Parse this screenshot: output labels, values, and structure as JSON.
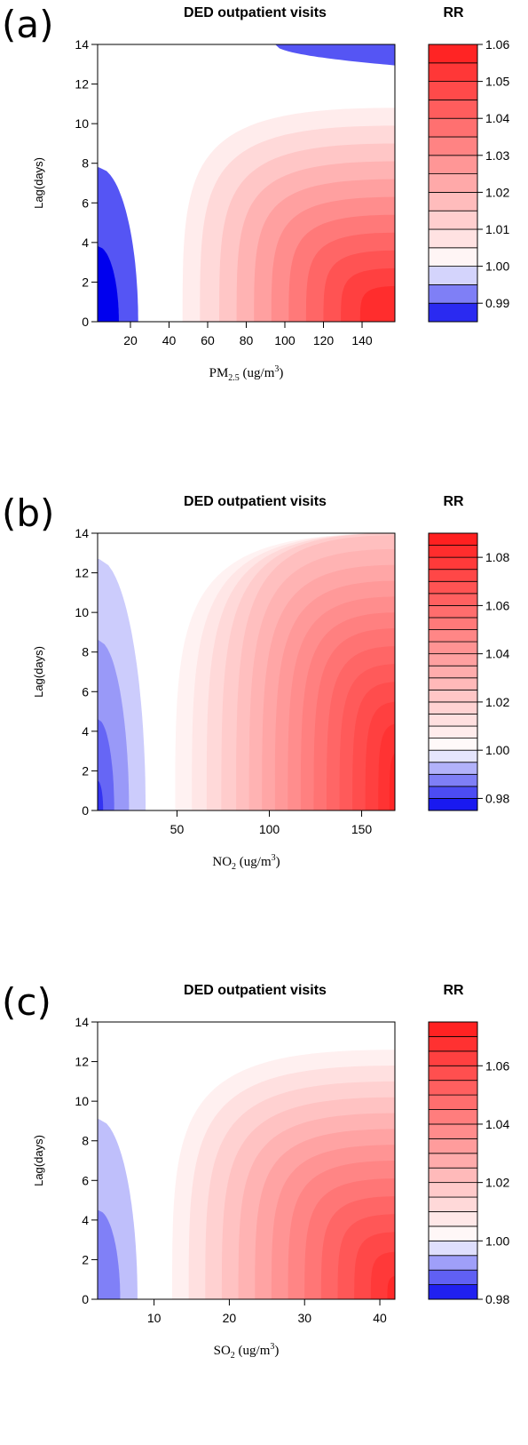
{
  "chart_data": [
    {
      "type": "heatmap",
      "panel_label": "(a)",
      "title": "DED outpatient visits",
      "legend_title": "RR",
      "ylabel": "Lag(days)",
      "xlabel": {
        "main": "PM",
        "sub": "2.5",
        "unit": " (ug/m",
        "sup": "3",
        "close": ")"
      },
      "xlim": [
        3,
        157
      ],
      "ylim": [
        0,
        14
      ],
      "x_ticks": [
        20,
        40,
        60,
        80,
        100,
        120,
        140
      ],
      "y_ticks": [
        0,
        2,
        4,
        6,
        8,
        10,
        12,
        14
      ],
      "legend_range": [
        0.985,
        1.06
      ],
      "legend_step": 0.005,
      "legend_ticks": [
        "0.99",
        "1.00",
        "1.01",
        "1.02",
        "1.03",
        "1.04",
        "1.05",
        "1.06"
      ],
      "legend_tick_values": [
        0.99,
        1.0,
        1.01,
        1.02,
        1.03,
        1.04,
        1.05,
        1.06
      ],
      "reference_rr": 1.0,
      "low_exposure_contours": [
        {
          "rr": 0.99,
          "x_at_lag0": 24,
          "max_lag": 7.8
        },
        {
          "rr": 0.985,
          "x_at_lag0": 14,
          "max_lag": 3.8
        }
      ],
      "high_exposure_contours": [
        {
          "rr": 1.005,
          "x_at_lag0": 47,
          "max_lag": 10.8
        },
        {
          "rr": 1.01,
          "x_at_lag0": 56,
          "max_lag": 9.9
        },
        {
          "rr": 1.015,
          "x_at_lag0": 66,
          "max_lag": 9.0
        },
        {
          "rr": 1.02,
          "x_at_lag0": 75,
          "max_lag": 8.1
        },
        {
          "rr": 1.025,
          "x_at_lag0": 84,
          "max_lag": 7.2
        },
        {
          "rr": 1.03,
          "x_at_lag0": 93,
          "max_lag": 6.3
        },
        {
          "rr": 1.035,
          "x_at_lag0": 102,
          "max_lag": 5.4
        },
        {
          "rr": 1.04,
          "x_at_lag0": 111,
          "max_lag": 4.5
        },
        {
          "rr": 1.045,
          "x_at_lag0": 120,
          "max_lag": 3.6
        },
        {
          "rr": 1.05,
          "x_at_lag0": 129,
          "max_lag": 2.7
        },
        {
          "rr": 1.055,
          "x_at_lag0": 139,
          "max_lag": 1.8
        }
      ],
      "top_right_band": {
        "rr": 0.99,
        "x_start": 95,
        "lag_start_at_xmax": 12.9
      }
    },
    {
      "type": "heatmap",
      "panel_label": "(b)",
      "title": "DED outpatient visits",
      "legend_title": "RR",
      "ylabel": "Lag(days)",
      "xlabel": {
        "main": "NO",
        "sub": "2",
        "unit": " (ug/m",
        "sup": "3",
        "close": ")"
      },
      "xlim": [
        7,
        168
      ],
      "ylim": [
        0,
        14
      ],
      "x_ticks": [
        50,
        100,
        150
      ],
      "y_ticks": [
        0,
        2,
        4,
        6,
        8,
        10,
        12,
        14
      ],
      "legend_range": [
        0.975,
        1.09
      ],
      "legend_step": 0.005,
      "legend_ticks": [
        "0.98",
        "1.00",
        "1.02",
        "1.04",
        "1.06",
        "1.08"
      ],
      "legend_tick_values": [
        0.98,
        1.0,
        1.02,
        1.04,
        1.06,
        1.08
      ],
      "reference_rr": 1.0,
      "low_exposure_contours": [
        {
          "rr": 0.995,
          "x_at_lag0": 33,
          "max_lag": 12.7
        },
        {
          "rr": 0.99,
          "x_at_lag0": 24,
          "max_lag": 8.6
        },
        {
          "rr": 0.985,
          "x_at_lag0": 16,
          "max_lag": 4.6
        },
        {
          "rr": 0.98,
          "x_at_lag0": 10,
          "max_lag": 1.5
        }
      ],
      "high_exposure_contours": [
        {
          "rr": 1.005,
          "x_at_lag0": 49,
          "max_lag": 14.0
        },
        {
          "rr": 1.01,
          "x_at_lag0": 58,
          "max_lag": 14.0
        },
        {
          "rr": 1.015,
          "x_at_lag0": 66,
          "max_lag": 14.0
        },
        {
          "rr": 1.02,
          "x_at_lag0": 74,
          "max_lag": 14.0
        },
        {
          "rr": 1.025,
          "x_at_lag0": 82,
          "max_lag": 13.9
        },
        {
          "rr": 1.03,
          "x_at_lag0": 89,
          "max_lag": 13.2
        },
        {
          "rr": 1.035,
          "x_at_lag0": 96,
          "max_lag": 12.4
        },
        {
          "rr": 1.04,
          "x_at_lag0": 103,
          "max_lag": 11.6
        },
        {
          "rr": 1.045,
          "x_at_lag0": 110,
          "max_lag": 10.8
        },
        {
          "rr": 1.05,
          "x_at_lag0": 117,
          "max_lag": 10.0
        },
        {
          "rr": 1.055,
          "x_at_lag0": 124,
          "max_lag": 9.2
        },
        {
          "rr": 1.06,
          "x_at_lag0": 131,
          "max_lag": 8.3
        },
        {
          "rr": 1.065,
          "x_at_lag0": 138,
          "max_lag": 7.4
        },
        {
          "rr": 1.07,
          "x_at_lag0": 145,
          "max_lag": 6.5
        },
        {
          "rr": 1.075,
          "x_at_lag0": 152,
          "max_lag": 5.5
        },
        {
          "rr": 1.08,
          "x_at_lag0": 159,
          "max_lag": 4.4
        },
        {
          "rr": 1.085,
          "x_at_lag0": 165,
          "max_lag": 3.0
        }
      ]
    },
    {
      "type": "heatmap",
      "panel_label": "(c)",
      "title": "DED outpatient visits",
      "legend_title": "RR",
      "ylabel": "Lag(days)",
      "xlabel": {
        "main": "SO",
        "sub": "2",
        "unit": " (ug/m",
        "sup": "3",
        "close": ")"
      },
      "xlim": [
        2.5,
        42
      ],
      "ylim": [
        0,
        14
      ],
      "x_ticks": [
        10,
        20,
        30,
        40
      ],
      "y_ticks": [
        0,
        2,
        4,
        6,
        8,
        10,
        12,
        14
      ],
      "legend_range": [
        0.98,
        1.075
      ],
      "legend_step": 0.005,
      "legend_ticks": [
        "0.98",
        "1.00",
        "1.02",
        "1.04",
        "1.06"
      ],
      "legend_tick_values": [
        0.98,
        1.0,
        1.02,
        1.04,
        1.06
      ],
      "reference_rr": 1.0,
      "low_exposure_contours": [
        {
          "rr": 0.995,
          "x_at_lag0": 7.8,
          "max_lag": 9.1
        },
        {
          "rr": 0.99,
          "x_at_lag0": 5.5,
          "max_lag": 4.5
        }
      ],
      "high_exposure_contours": [
        {
          "rr": 1.005,
          "x_at_lag0": 12.4,
          "max_lag": 12.6
        },
        {
          "rr": 1.01,
          "x_at_lag0": 14.6,
          "max_lag": 11.8
        },
        {
          "rr": 1.015,
          "x_at_lag0": 16.8,
          "max_lag": 11.0
        },
        {
          "rr": 1.02,
          "x_at_lag0": 19.0,
          "max_lag": 10.2
        },
        {
          "rr": 1.025,
          "x_at_lag0": 21.2,
          "max_lag": 9.4
        },
        {
          "rr": 1.03,
          "x_at_lag0": 23.4,
          "max_lag": 8.6
        },
        {
          "rr": 1.035,
          "x_at_lag0": 25.6,
          "max_lag": 7.8
        },
        {
          "rr": 1.04,
          "x_at_lag0": 27.8,
          "max_lag": 7.0
        },
        {
          "rr": 1.045,
          "x_at_lag0": 30.0,
          "max_lag": 6.1
        },
        {
          "rr": 1.05,
          "x_at_lag0": 32.2,
          "max_lag": 5.2
        },
        {
          "rr": 1.055,
          "x_at_lag0": 34.4,
          "max_lag": 4.3
        },
        {
          "rr": 1.06,
          "x_at_lag0": 36.6,
          "max_lag": 3.4
        },
        {
          "rr": 1.065,
          "x_at_lag0": 38.8,
          "max_lag": 2.4
        },
        {
          "rr": 1.07,
          "x_at_lag0": 41.0,
          "max_lag": 1.2
        }
      ]
    }
  ],
  "colors": {
    "low_end": "#0000ee",
    "reference": "#ffffff",
    "high_end": "#ff1a1a",
    "frame": "#000000"
  }
}
